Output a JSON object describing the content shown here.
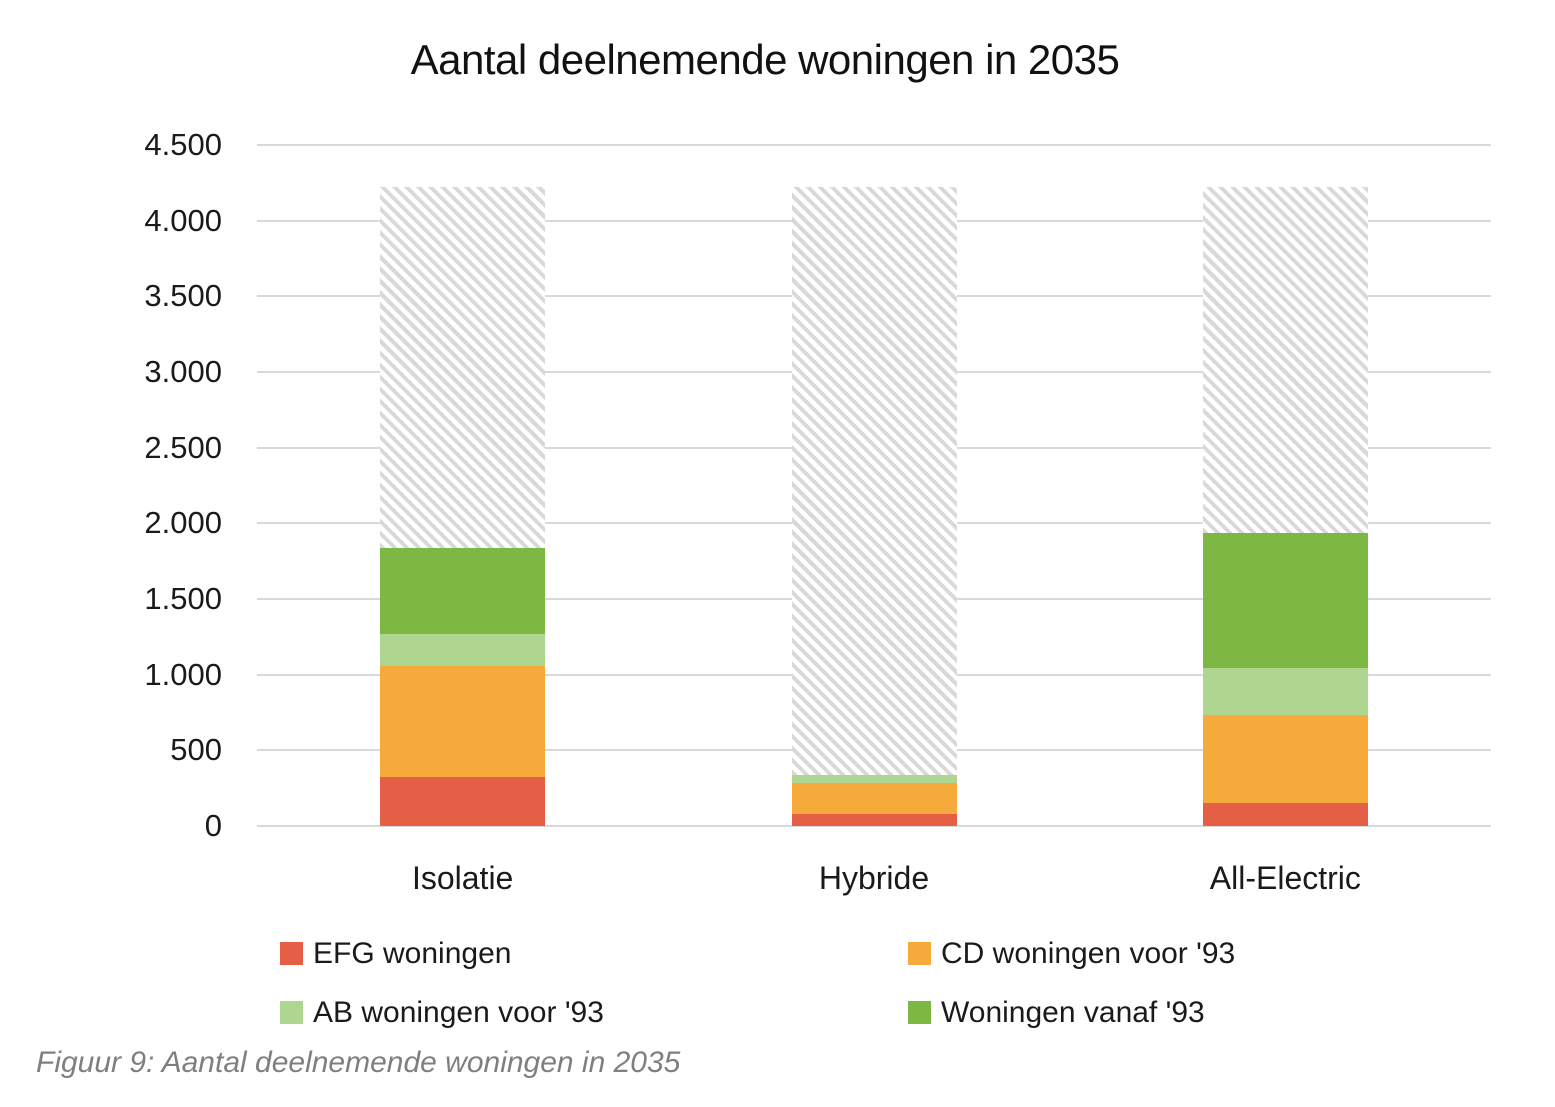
{
  "title": "Aantal deelnemende woningen in 2035",
  "caption": "Figuur 9: Aantal deelnemende woningen in 2035",
  "colors": {
    "gridline": "#d9d9d9",
    "hatch_stripe": "#d9d9d9",
    "axis_text": "#1a1a1a",
    "caption_text": "#7f7f7f",
    "efg": "#e45f45",
    "cd": "#f5aa3b",
    "ab": "#afd690",
    "vanaf93": "#7db843"
  },
  "legend": [
    {
      "label": "EFG woningen",
      "color": "#e45f45"
    },
    {
      "label": "CD woningen voor '93",
      "color": "#f5aa3b"
    },
    {
      "label": "AB woningen voor '93",
      "color": "#afd690"
    },
    {
      "label": "Woningen vanaf '93",
      "color": "#7db843"
    }
  ],
  "chart_data": {
    "type": "bar",
    "stacked": true,
    "title": "Aantal deelnemende woningen in 2035",
    "categories": [
      "Isolatie",
      "Hybride",
      "All-Electric"
    ],
    "series": [
      {
        "name": "EFG woningen",
        "color": "#e45f45",
        "values": [
          325,
          80,
          150
        ]
      },
      {
        "name": "CD woningen voor '93",
        "color": "#f5aa3b",
        "values": [
          730,
          205,
          585
        ]
      },
      {
        "name": "AB woningen voor '93",
        "color": "#afd690",
        "values": [
          215,
          50,
          310
        ]
      },
      {
        "name": "Woningen vanaf '93",
        "color": "#7db843",
        "values": [
          570,
          0,
          890
        ]
      }
    ],
    "stack_totals": [
      1840,
      335,
      1935
    ],
    "hatch_overlay": {
      "description": "diagonal-hatched remainder drawn from top of each colored stack up to a common total",
      "total": 4220,
      "remainder_values": [
        2380,
        3885,
        2285
      ],
      "stripe_color": "#d9d9d9"
    },
    "xlabel": "",
    "ylabel": "",
    "ylim": [
      0,
      4500
    ],
    "y_tick_step": 500,
    "y_tick_labels": [
      "0",
      "500",
      "1.000",
      "1.500",
      "2.000",
      "2.500",
      "3.000",
      "3.500",
      "4.000",
      "4.500"
    ],
    "grid": true,
    "legend_position": "bottom"
  }
}
